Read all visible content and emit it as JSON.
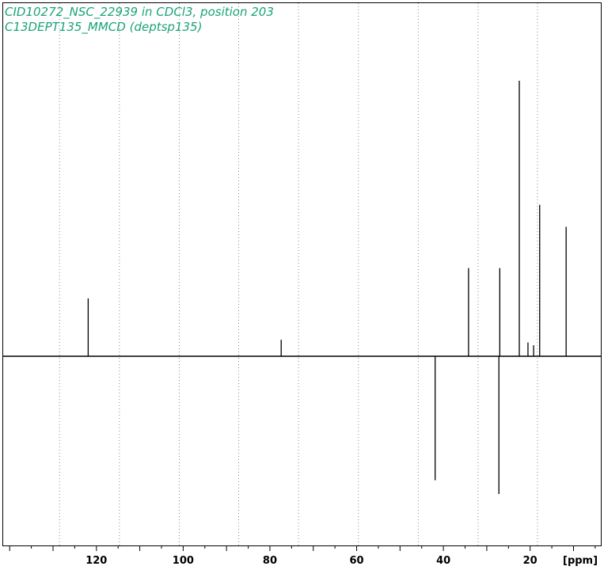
{
  "chart_data": {
    "type": "line",
    "title_lines": [
      "CID10272_NSC_22939 in CDCl3, position 203",
      "C13DEPT135_MMCD (deptsp135)"
    ],
    "x_unit_label": "[ppm]",
    "x_axis_reversed": true,
    "xlim": [
      141.5,
      3.7
    ],
    "ylim": [
      -0.48,
      1.0
    ],
    "x_ticks": [
      {
        "value": 120,
        "label": "120"
      },
      {
        "value": 100,
        "label": "100"
      },
      {
        "value": 80,
        "label": "80"
      },
      {
        "value": 60,
        "label": "60"
      },
      {
        "value": 40,
        "label": "40"
      },
      {
        "value": 20,
        "label": "20"
      }
    ],
    "grid_x": [
      128.5,
      114.7,
      100.9,
      87.2,
      73.4,
      59.6,
      45.8,
      32.0,
      18.3
    ],
    "grid": true,
    "colors": {
      "title": "#1aa37a",
      "trace": "#000000",
      "grid": "#888888"
    },
    "series": [
      {
        "peaks": [
          {
            "x": 121.9,
            "y": 0.21
          },
          {
            "x": 77.4,
            "y": 0.06
          },
          {
            "x": 41.9,
            "y": -0.45
          },
          {
            "x": 34.2,
            "y": 0.32
          },
          {
            "x": 27.2,
            "y": -0.5
          },
          {
            "x": 27.0,
            "y": 0.32
          },
          {
            "x": 22.5,
            "y": 1.0
          },
          {
            "x": 20.5,
            "y": 0.05
          },
          {
            "x": 19.2,
            "y": 0.04
          },
          {
            "x": 17.8,
            "y": 0.55
          },
          {
            "x": 11.7,
            "y": 0.47
          }
        ]
      }
    ]
  }
}
